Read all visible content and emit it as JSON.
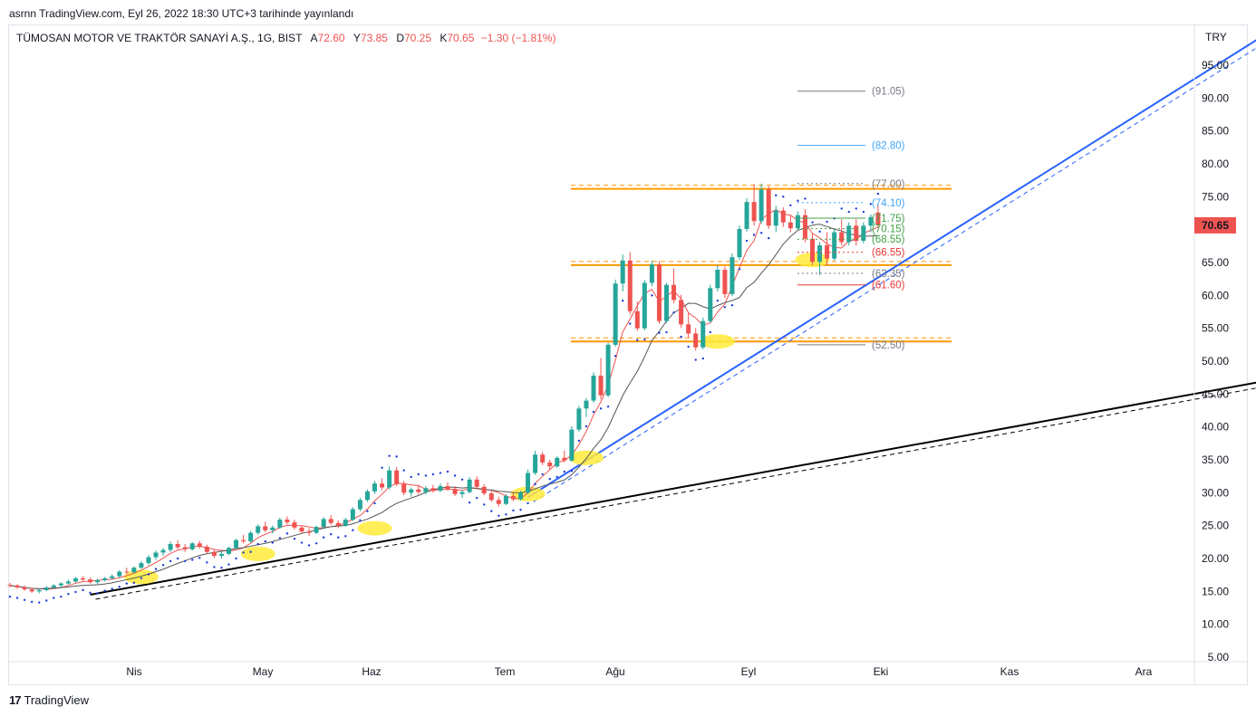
{
  "header": {
    "published": "asrnn TradingView.com, Eyl 26, 2022 18:30 UTC+3 tarihinde yayınlandı"
  },
  "legend": {
    "symbol": "TÜMOSAN MOTOR VE TRAKTÖR SANAYİ A.Ş., 1G, BIST",
    "open_label": "A",
    "open": "72.60",
    "high_label": "Y",
    "high": "73.85",
    "low_label": "D",
    "low": "70.25",
    "close_label": "K",
    "close": "70.65",
    "change": "−1.30 (−1.81%)"
  },
  "currency": "TRY",
  "brand": {
    "name": "TradingView",
    "logo": "tradingview-logo-icon"
  },
  "colors": {
    "up": "#26a69a",
    "down": "#ef5350",
    "trend_blue": "#2962ff",
    "trend_black": "#000000",
    "support_orange": "#ff9800",
    "highlight_yellow": "#ffeb3b",
    "sar_blue": "#1e3ad8",
    "ma_red": "#ef5350",
    "ma_grey": "#555555"
  },
  "chart_data": {
    "type": "candlestick",
    "y_axis": {
      "range": [
        4.5,
        98
      ],
      "ticks": [
        "95.00",
        "90.00",
        "85.00",
        "80.00",
        "75.00",
        "70.00",
        "65.00",
        "60.00",
        "55.00",
        "50.00",
        "45.00",
        "40.00",
        "35.00",
        "30.00",
        "25.00",
        "20.00",
        "15.00",
        "10.00",
        "5.00"
      ],
      "last_price_label": "70.65"
    },
    "x_axis": {
      "months": [
        "Nis",
        "May",
        "Haz",
        "Tem",
        "Ağu",
        "Eyl",
        "Eki",
        "Kas",
        "Ara"
      ]
    },
    "candles": [
      [
        16.0,
        16.3,
        15.6,
        15.9
      ],
      [
        15.9,
        16.1,
        15.4,
        15.6
      ],
      [
        15.6,
        15.9,
        15.1,
        15.3
      ],
      [
        15.3,
        15.6,
        14.8,
        15.0
      ],
      [
        15.0,
        15.4,
        14.7,
        15.2
      ],
      [
        15.2,
        15.8,
        15.0,
        15.6
      ],
      [
        15.6,
        16.1,
        15.4,
        15.9
      ],
      [
        15.9,
        16.4,
        15.6,
        16.2
      ],
      [
        16.2,
        16.8,
        16.0,
        16.5
      ],
      [
        16.5,
        17.2,
        16.3,
        17.0
      ],
      [
        17.0,
        17.3,
        16.6,
        16.8
      ],
      [
        16.8,
        17.1,
        16.2,
        16.4
      ],
      [
        16.4,
        16.9,
        16.1,
        16.7
      ],
      [
        16.7,
        17.2,
        16.5,
        17.0
      ],
      [
        17.0,
        17.6,
        16.8,
        17.3
      ],
      [
        17.3,
        18.2,
        17.1,
        18.0
      ],
      [
        18.0,
        18.6,
        17.6,
        17.9
      ],
      [
        17.9,
        18.8,
        17.7,
        18.6
      ],
      [
        18.6,
        19.6,
        18.4,
        19.3
      ],
      [
        19.3,
        20.5,
        19.0,
        20.2
      ],
      [
        20.2,
        21.2,
        19.8,
        20.9
      ],
      [
        20.9,
        21.6,
        20.4,
        21.3
      ],
      [
        21.3,
        22.6,
        21.0,
        22.2
      ],
      [
        22.2,
        22.8,
        21.4,
        21.7
      ],
      [
        21.7,
        22.2,
        21.0,
        21.4
      ],
      [
        21.4,
        22.5,
        21.2,
        22.3
      ],
      [
        22.3,
        22.7,
        21.5,
        21.8
      ],
      [
        21.8,
        22.1,
        20.8,
        21.0
      ],
      [
        21.0,
        21.4,
        20.1,
        20.4
      ],
      [
        20.4,
        21.0,
        20.0,
        20.7
      ],
      [
        20.7,
        21.8,
        20.5,
        21.6
      ],
      [
        21.6,
        23.0,
        21.4,
        22.8
      ],
      [
        22.8,
        23.6,
        22.3,
        22.6
      ],
      [
        22.6,
        24.2,
        22.4,
        23.9
      ],
      [
        23.9,
        25.2,
        23.6,
        24.9
      ],
      [
        24.9,
        25.6,
        24.0,
        24.3
      ],
      [
        24.3,
        25.0,
        23.8,
        24.7
      ],
      [
        24.7,
        26.2,
        24.5,
        25.9
      ],
      [
        25.9,
        26.4,
        25.2,
        25.5
      ],
      [
        25.5,
        25.9,
        24.4,
        24.7
      ],
      [
        24.7,
        25.1,
        23.8,
        24.1
      ],
      [
        24.1,
        24.6,
        23.4,
        23.9
      ],
      [
        23.9,
        25.0,
        23.7,
        24.8
      ],
      [
        24.8,
        26.3,
        24.6,
        26.0
      ],
      [
        26.0,
        26.6,
        25.1,
        25.4
      ],
      [
        25.4,
        25.8,
        24.6,
        25.0
      ],
      [
        25.0,
        26.2,
        24.8,
        25.9
      ],
      [
        25.9,
        27.8,
        25.7,
        27.5
      ],
      [
        27.5,
        29.2,
        27.2,
        28.9
      ],
      [
        28.9,
        30.5,
        28.6,
        30.2
      ],
      [
        30.2,
        31.8,
        29.8,
        31.4
      ],
      [
        31.4,
        32.2,
        30.4,
        30.8
      ],
      [
        30.8,
        34.0,
        30.5,
        33.4
      ],
      [
        33.4,
        33.9,
        31.0,
        31.3
      ],
      [
        31.3,
        31.8,
        29.6,
        30.0
      ],
      [
        30.0,
        30.8,
        29.4,
        30.5
      ],
      [
        30.5,
        31.2,
        29.8,
        30.1
      ],
      [
        30.1,
        31.0,
        29.7,
        30.7
      ],
      [
        30.7,
        31.2,
        30.0,
        30.3
      ],
      [
        30.3,
        31.4,
        30.1,
        31.0
      ],
      [
        31.0,
        31.6,
        30.3,
        30.6
      ],
      [
        30.6,
        31.0,
        29.5,
        29.8
      ],
      [
        29.8,
        30.4,
        29.2,
        30.1
      ],
      [
        30.1,
        32.4,
        29.9,
        32.0
      ],
      [
        32.0,
        32.5,
        30.6,
        30.9
      ],
      [
        30.9,
        31.3,
        29.6,
        29.9
      ],
      [
        29.9,
        30.2,
        28.6,
        28.9
      ],
      [
        28.9,
        29.4,
        27.9,
        28.3
      ],
      [
        28.3,
        29.8,
        28.1,
        29.5
      ],
      [
        29.5,
        30.1,
        28.7,
        29.0
      ],
      [
        29.0,
        30.3,
        28.8,
        30.0
      ],
      [
        30.0,
        33.5,
        29.8,
        33.0
      ],
      [
        33.0,
        36.4,
        32.7,
        35.8
      ],
      [
        35.8,
        36.2,
        34.2,
        34.6
      ],
      [
        34.6,
        35.0,
        33.5,
        34.0
      ],
      [
        34.0,
        35.6,
        33.8,
        35.3
      ],
      [
        35.3,
        36.4,
        34.6,
        34.9
      ],
      [
        34.9,
        40.1,
        34.7,
        39.6
      ],
      [
        39.6,
        43.2,
        39.3,
        42.8
      ],
      [
        42.8,
        44.4,
        41.5,
        44.0
      ],
      [
        44.0,
        48.3,
        43.7,
        47.8
      ],
      [
        47.8,
        50.5,
        44.2,
        44.8
      ],
      [
        44.8,
        52.8,
        44.5,
        52.5
      ],
      [
        52.5,
        62.4,
        52.2,
        61.8
      ],
      [
        61.8,
        66.2,
        60.6,
        65.3
      ],
      [
        65.3,
        66.6,
        57.1,
        57.6
      ],
      [
        57.6,
        59.1,
        54.6,
        55.0
      ],
      [
        55.0,
        62.3,
        54.7,
        61.9
      ],
      [
        61.9,
        65.3,
        61.4,
        64.7
      ],
      [
        64.7,
        65.2,
        55.7,
        56.1
      ],
      [
        56.1,
        61.9,
        55.8,
        61.6
      ],
      [
        61.6,
        64.1,
        58.8,
        59.3
      ],
      [
        59.3,
        60.1,
        55.1,
        55.6
      ],
      [
        55.6,
        57.4,
        53.6,
        54.2
      ],
      [
        54.2,
        55.0,
        51.6,
        52.1
      ],
      [
        52.1,
        56.6,
        51.8,
        56.1
      ],
      [
        56.1,
        61.6,
        55.8,
        61.1
      ],
      [
        61.1,
        64.6,
        60.6,
        63.9
      ],
      [
        63.9,
        64.4,
        59.6,
        60.2
      ],
      [
        60.2,
        66.4,
        59.9,
        65.8
      ],
      [
        65.8,
        70.6,
        65.4,
        70.1
      ],
      [
        70.1,
        74.8,
        69.7,
        74.2
      ],
      [
        74.2,
        76.9,
        70.6,
        71.3
      ],
      [
        71.3,
        77.0,
        70.9,
        76.1
      ],
      [
        76.1,
        76.6,
        70.1,
        70.6
      ],
      [
        70.6,
        73.6,
        69.6,
        72.9
      ],
      [
        72.9,
        73.4,
        70.4,
        71.1
      ],
      [
        71.1,
        72.1,
        69.6,
        70.2
      ],
      [
        70.2,
        72.8,
        69.9,
        72.2
      ],
      [
        72.2,
        73.1,
        68.1,
        68.6
      ],
      [
        68.6,
        69.5,
        64.6,
        65.1
      ],
      [
        65.1,
        68.1,
        63.1,
        67.6
      ],
      [
        67.6,
        69.6,
        64.6,
        65.6
      ],
      [
        65.6,
        70.1,
        65.3,
        69.6
      ],
      [
        69.6,
        71.6,
        67.6,
        68.1
      ],
      [
        68.1,
        71.1,
        67.6,
        70.6
      ],
      [
        70.6,
        71.6,
        67.6,
        68.3
      ],
      [
        68.3,
        71.1,
        67.9,
        70.6
      ],
      [
        70.6,
        72.3,
        69.6,
        71.9
      ],
      [
        72.6,
        73.85,
        70.25,
        70.65
      ]
    ],
    "overlays": {
      "horizontal_levels": [
        {
          "label": "(91.05)",
          "value": 91.05,
          "color": "#787b86"
        },
        {
          "label": "(82.80)",
          "value": 82.8,
          "color": "#42a5f5"
        },
        {
          "label": "(77.00)",
          "value": 77.0,
          "color": "#787b86"
        },
        {
          "label": "(74.10)",
          "value": 74.1,
          "color": "#42a5f5"
        },
        {
          "label": "(71.75)",
          "value": 71.75,
          "color": "#43a047"
        },
        {
          "label": "(70.15)",
          "value": 70.15,
          "color": "#43a047"
        },
        {
          "label": "(68.55)",
          "value": 68.55,
          "color": "#43a047"
        },
        {
          "label": "(66.55)",
          "value": 66.55,
          "color": "#e53935"
        },
        {
          "label": "(63.35)",
          "value": 63.35,
          "color": "#787b86"
        },
        {
          "label": "(61.60)",
          "value": 61.6,
          "color": "#e53935"
        },
        {
          "label": "(52.50)",
          "value": 52.5,
          "color": "#787b86"
        }
      ],
      "support_resistance_zones": [
        76.2,
        64.6,
        53.0
      ],
      "trend_lines": [
        {
          "name": "steep-trend",
          "from": [
            71,
            29.3
          ],
          "to": [
            174,
            101.0
          ],
          "color": "#2962ff"
        },
        {
          "name": "long-trend",
          "from": [
            11,
            14.5
          ],
          "to": [
            187,
            50.0
          ],
          "color": "#000000"
        }
      ]
    }
  }
}
